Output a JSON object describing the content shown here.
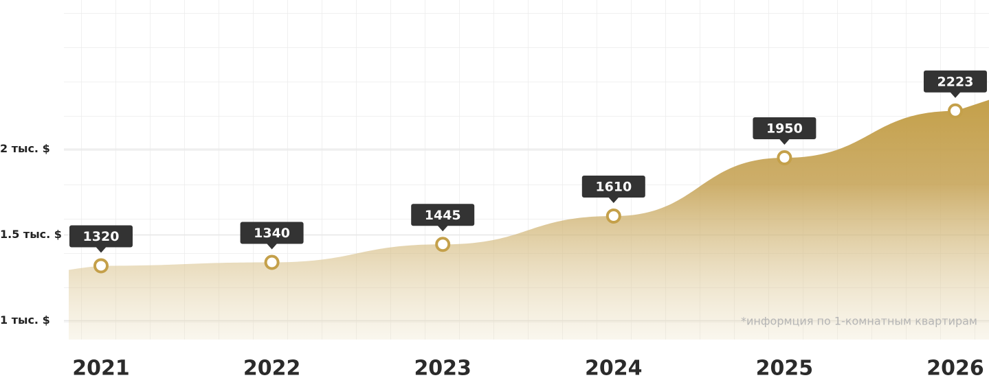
{
  "chart_data": {
    "type": "area",
    "categories": [
      "2021",
      "2022",
      "2023",
      "2024",
      "2025",
      "2026"
    ],
    "values": [
      1320,
      1340,
      1445,
      1610,
      1950,
      2223
    ],
    "color": "#c4a04a",
    "ylim": [
      890,
      2870
    ],
    "yticks": [
      {
        "value": 1000,
        "label": "1 тыс. $"
      },
      {
        "value": 1500,
        "label": "1.5 тыс. $"
      },
      {
        "value": 2000,
        "label": "2 тыс. $"
      }
    ],
    "annotation": "*информция по 1-комнатным квартирам"
  }
}
